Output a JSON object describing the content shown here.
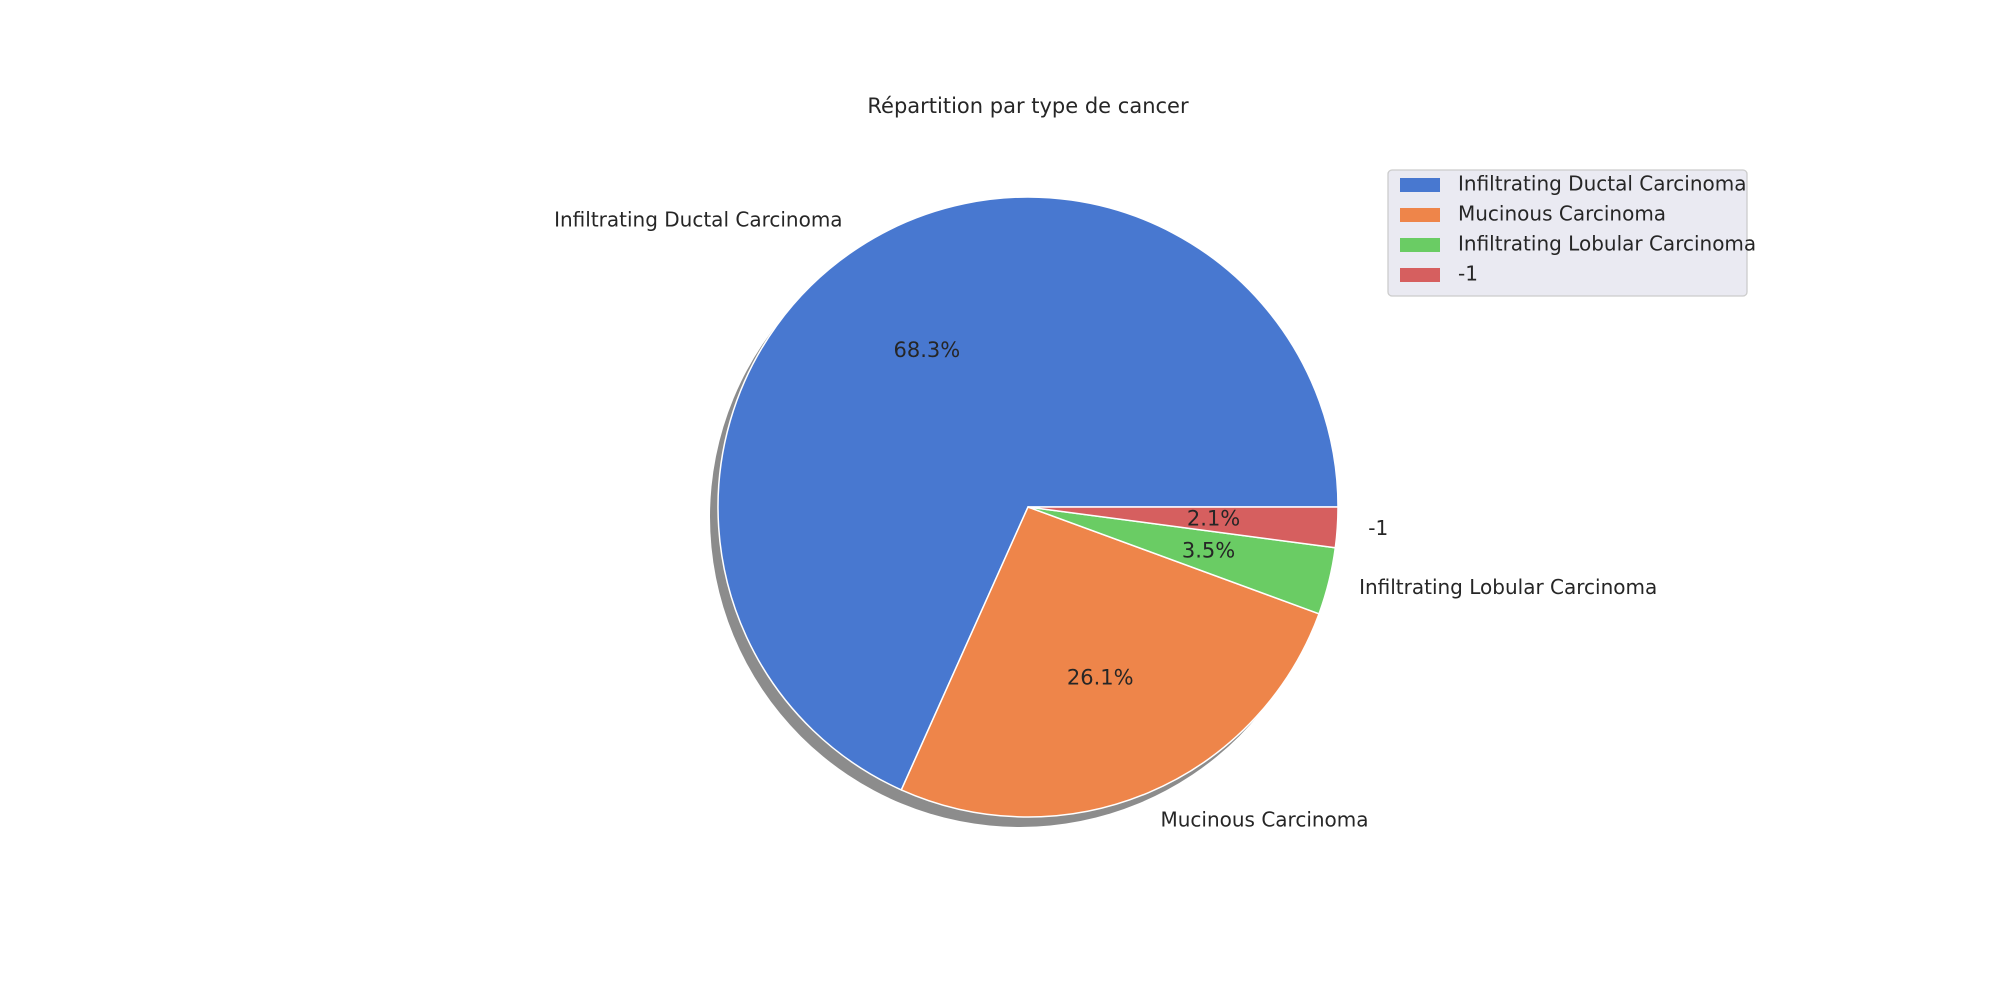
{
  "chart_data": {
    "type": "pie",
    "title": "Répartition par type de cancer",
    "slices": [
      {
        "label": "Infiltrating Ductal Carcinoma",
        "value": 68.3,
        "pct_label": "68.3%",
        "color": "#4878d0"
      },
      {
        "label": "Mucinous Carcinoma",
        "value": 26.1,
        "pct_label": "26.1%",
        "color": "#ee854a"
      },
      {
        "label": "Infiltrating Lobular Carcinoma",
        "value": 3.5,
        "pct_label": "3.5%",
        "color": "#6acc64"
      },
      {
        "label": "-1",
        "value": 2.1,
        "pct_label": "2.1%",
        "color": "#d65f5f"
      }
    ],
    "start_angle": 0,
    "direction": "counterclockwise",
    "shadow": true,
    "legend": {
      "placement": "upper-right",
      "entries": [
        "Infiltrating Ductal Carcinoma",
        "Mucinous Carcinoma",
        "Infiltrating Lobular Carcinoma",
        "-1"
      ]
    }
  }
}
